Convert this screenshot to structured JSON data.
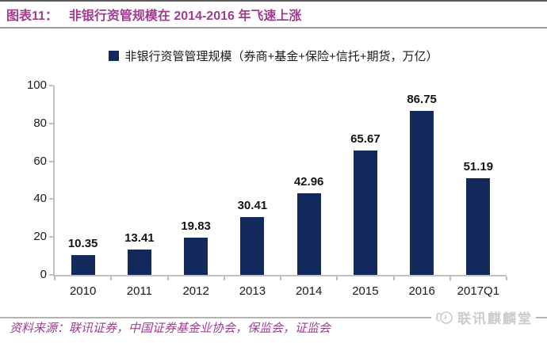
{
  "header": {
    "caption_label": "图表11：",
    "caption_title": "非银行资管规模在 2014-2016 年飞速上涨"
  },
  "legend": {
    "label": "非银行资管管理规模（券商+基金+保险+信托+期货，万亿）"
  },
  "chart_data": {
    "type": "bar",
    "categories": [
      "2010",
      "2011",
      "2012",
      "2013",
      "2014",
      "2015",
      "2016",
      "2017Q1"
    ],
    "values": [
      10.35,
      13.41,
      19.83,
      30.41,
      42.96,
      65.67,
      86.75,
      51.19
    ],
    "title": "非银行资管规模在 2014-2016 年飞速上涨",
    "legend_entries": [
      "非银行资管管理规模（券商+基金+保险+信托+期货，万亿）"
    ],
    "legend_position": "top",
    "xlabel": "",
    "ylabel": "",
    "ylim": [
      0,
      100
    ],
    "yticks": [
      0,
      20,
      40,
      60,
      80,
      100
    ],
    "grid": false,
    "value_labels": true
  },
  "footer": {
    "source": "资料来源：联讯证券，中国证券基金业协会，保监会，证监会",
    "watermark": "联讯麒麟堂"
  },
  "colors": {
    "accent": "#A23A8E",
    "bar": "#13295C",
    "axis": "#C0C0C0",
    "text": "#1A1A1A"
  }
}
